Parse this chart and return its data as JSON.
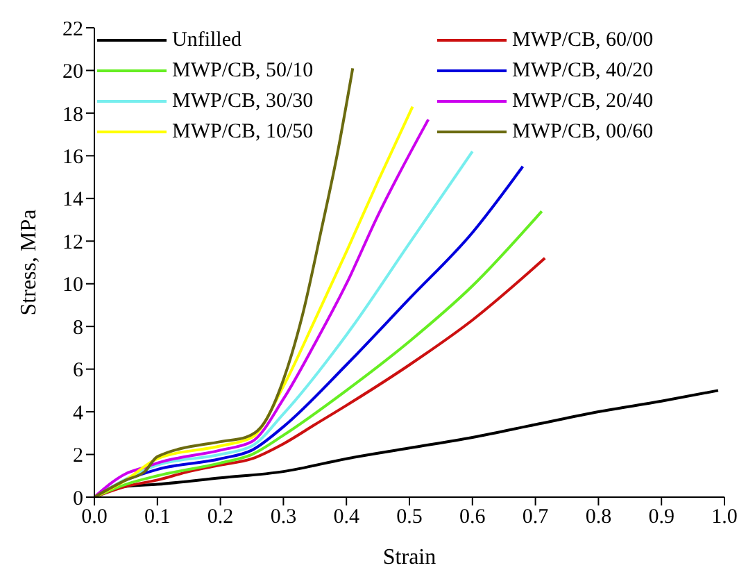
{
  "chart_data": {
    "type": "line",
    "xlabel": "Strain",
    "ylabel": "Stress, MPa",
    "xlim": [
      0,
      1
    ],
    "xticks": [
      {
        "value": 0,
        "label": "0.0"
      },
      0.1,
      0.2,
      0.3,
      0.4,
      0.5,
      0.6,
      0.7,
      0.8,
      0.9,
      {
        "value": 1,
        "label": "1.0"
      }
    ],
    "ylim": [
      0,
      22
    ],
    "yticks": [
      0,
      2,
      4,
      6,
      8,
      10,
      12,
      14,
      16,
      18,
      20,
      22
    ],
    "grid": false,
    "legend": "top",
    "marker": "none",
    "line_style": "solid",
    "series": [
      {
        "name": "Unfilled",
        "color": "#000000",
        "x": [
          0,
          0.05,
          0.1,
          0.2,
          0.3,
          0.4,
          0.5,
          0.6,
          0.7,
          0.8,
          0.9,
          0.99
        ],
        "values": [
          0,
          0.5,
          0.6,
          0.9,
          1.2,
          1.8,
          2.3,
          2.8,
          3.4,
          4,
          4.5,
          5
        ]
      },
      {
        "name": "MWP/CB, 60/00",
        "color": "#cc1010",
        "x": [
          0,
          0.05,
          0.1,
          0.15,
          0.2,
          0.25,
          0.3,
          0.35,
          0.4,
          0.5,
          0.6,
          0.715
        ],
        "values": [
          0,
          0.5,
          0.8,
          1.2,
          1.5,
          1.8,
          2.5,
          3.4,
          4.3,
          6.2,
          8.3,
          11.2
        ]
      },
      {
        "name": "MWP/CB, 50/10",
        "color": "#66ee22",
        "x": [
          0,
          0.05,
          0.1,
          0.2,
          0.25,
          0.3,
          0.4,
          0.5,
          0.6,
          0.71
        ],
        "values": [
          0,
          0.6,
          1,
          1.6,
          2,
          2.9,
          5,
          7.3,
          9.9,
          13.4
        ]
      },
      {
        "name": "MWP/CB, 40/20",
        "color": "#0000dd",
        "x": [
          0,
          0.05,
          0.1,
          0.2,
          0.25,
          0.3,
          0.4,
          0.5,
          0.6,
          0.68
        ],
        "values": [
          0,
          0.8,
          1.3,
          1.8,
          2.2,
          3.3,
          6.2,
          9.3,
          12.4,
          15.5
        ]
      },
      {
        "name": "MWP/CB, 30/30",
        "color": "#77eeee",
        "x": [
          0,
          0.05,
          0.1,
          0.2,
          0.25,
          0.3,
          0.4,
          0.5,
          0.6
        ],
        "values": [
          0,
          null,
          1.5,
          2,
          2.4,
          3.9,
          7.6,
          11.9,
          16.2
        ]
      },
      {
        "name": "MWP/CB, 20/40",
        "color": "#cc00ee",
        "x": [
          0,
          0.05,
          0.08,
          0.1,
          0.2,
          0.25,
          0.3,
          0.35,
          0.4,
          0.45,
          0.53
        ],
        "values": [
          0,
          1.1,
          1.4,
          1.6,
          2.2,
          2.6,
          4.6,
          7.2,
          10,
          13.2,
          17.7
        ]
      },
      {
        "name": "MWP/CB, 10/50",
        "color": "#ffff00",
        "x": [
          0,
          0.05,
          0.1,
          0.2,
          0.25,
          0.3,
          0.35,
          0.4,
          0.45,
          0.505
        ],
        "values": [
          0,
          0.8,
          1.8,
          2.4,
          2.8,
          5.2,
          8.3,
          11.5,
          14.8,
          18.3
        ]
      },
      {
        "name": "MWP/CB, 00/60",
        "color": "#6b6b10",
        "x": [
          0,
          0.05,
          0.08,
          0.1,
          0.2,
          0.24,
          0.27,
          0.3,
          0.33,
          0.36,
          0.385,
          0.41
        ],
        "values": [
          0,
          0.8,
          1.2,
          1.9,
          2.6,
          2.8,
          3.5,
          5.5,
          8.5,
          12.5,
          16,
          20.1
        ]
      }
    ]
  }
}
